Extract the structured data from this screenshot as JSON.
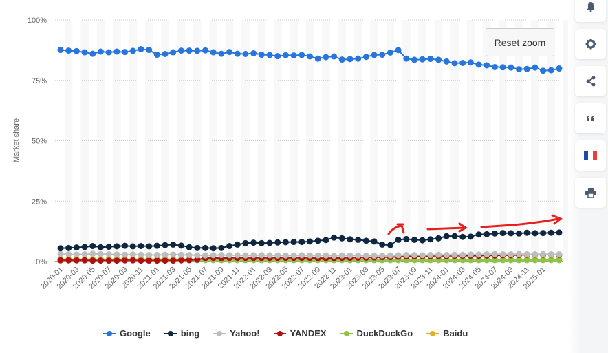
{
  "chart_data": {
    "type": "line",
    "ylabel": "Market share",
    "ylim": [
      0,
      100
    ],
    "yticks": [
      "0%",
      "25%",
      "50%",
      "75%",
      "100%"
    ],
    "x_start": "2020-01",
    "xtick_labels": [
      "2020-01",
      "2020-03",
      "2020-05",
      "2020-07",
      "2020-09",
      "2020-11",
      "2021-01",
      "2021-03",
      "2021-05",
      "2021-07",
      "2021-09",
      "2021-11",
      "2022-01",
      "2022-03",
      "2022-05",
      "2022-07",
      "2022-09",
      "2022-11",
      "2023-01",
      "2023-03",
      "2023-05",
      "2023-07",
      "2023-09",
      "2023-11",
      "2024-01",
      "2024-03",
      "2024-05",
      "2024-07",
      "2024-09",
      "2024-11",
      "2025-01"
    ],
    "grid": true,
    "legend_position": "bottom",
    "series": [
      {
        "name": "Google",
        "color": "#2876dd",
        "values": [
          87.6,
          87.3,
          87.1,
          86.6,
          86.0,
          86.9,
          86.6,
          86.9,
          86.7,
          87.2,
          87.9,
          87.6,
          85.6,
          85.9,
          86.6,
          87.3,
          87.3,
          87.2,
          87.4,
          86.6,
          86.0,
          86.7,
          86.0,
          85.9,
          86.2,
          85.6,
          85.5,
          85.0,
          85.4,
          85.3,
          85.5,
          84.9,
          84.0,
          84.6,
          84.9,
          83.6,
          83.8,
          84.0,
          84.7,
          85.5,
          85.6,
          86.5,
          87.5,
          84.0,
          83.5,
          83.7,
          83.9,
          83.5,
          82.8,
          82.1,
          82.2,
          82.4,
          81.5,
          81.2,
          80.5,
          80.4,
          80.3,
          79.6,
          79.7,
          80.3,
          79.0,
          79.2,
          79.9
        ]
      },
      {
        "name": "bing",
        "color": "#0f2640",
        "values": [
          5.5,
          5.6,
          5.8,
          6.0,
          6.4,
          5.9,
          6.1,
          6.3,
          6.5,
          6.3,
          6.4,
          6.3,
          6.5,
          6.8,
          7.0,
          6.6,
          5.9,
          5.6,
          5.6,
          5.5,
          5.6,
          6.4,
          7.0,
          7.6,
          7.8,
          7.6,
          7.7,
          7.9,
          8.0,
          8.1,
          8.1,
          8.3,
          8.6,
          8.9,
          9.9,
          9.6,
          9.2,
          9.0,
          8.6,
          8.3,
          7.0,
          6.8,
          9.0,
          9.3,
          9.0,
          8.8,
          9.2,
          9.6,
          10.5,
          10.5,
          10.2,
          10.3,
          11.2,
          11.3,
          11.6,
          11.8,
          11.7,
          11.6,
          11.9,
          11.7,
          11.8,
          11.9,
          12.0
        ]
      },
      {
        "name": "Yahoo!",
        "color": "#bdbdbd",
        "values": [
          3.1,
          3.0,
          2.9,
          3.0,
          3.2,
          3.1,
          3.0,
          2.9,
          2.8,
          2.9,
          2.8,
          2.7,
          2.7,
          2.8,
          2.9,
          2.8,
          2.7,
          2.6,
          2.5,
          2.6,
          2.7,
          2.6,
          2.6,
          2.5,
          2.6,
          2.6,
          2.6,
          2.5,
          2.5,
          2.5,
          2.6,
          2.5,
          2.5,
          2.5,
          2.4,
          2.5,
          2.5,
          2.5,
          2.4,
          2.4,
          2.5,
          2.5,
          2.6,
          2.7,
          2.7,
          2.6,
          2.7,
          2.8,
          2.7,
          2.8,
          2.8,
          2.9,
          2.9,
          3.0,
          3.1,
          3.0,
          3.0,
          3.1,
          3.0,
          3.0,
          3.1,
          3.0,
          3.0
        ]
      },
      {
        "name": "YANDEX",
        "color": "#b20e0e",
        "values": [
          0.5,
          0.5,
          0.5,
          0.5,
          0.4,
          0.4,
          0.4,
          0.4,
          0.5,
          0.5,
          0.4,
          0.4,
          0.4,
          0.4,
          0.4,
          0.5,
          0.6,
          0.8,
          1.4,
          1.5,
          1.4,
          1.5,
          1.5,
          1.5,
          1.5,
          1.5,
          1.5,
          1.5,
          1.5,
          1.5,
          1.5,
          1.5,
          1.4,
          1.4,
          1.4,
          1.5,
          1.5,
          1.6,
          1.6,
          1.7,
          1.8,
          1.8,
          2.0,
          2.1,
          2.2,
          2.2,
          2.3,
          2.3,
          2.3,
          2.4,
          2.4,
          2.4,
          2.4,
          2.5,
          2.5,
          2.6,
          2.6,
          2.7,
          2.8,
          2.9,
          2.8,
          2.9,
          2.8
        ]
      },
      {
        "name": "DuckDuckGo",
        "color": "#8cc63f",
        "values": [
          0.6,
          0.6,
          0.6,
          0.6,
          0.6,
          0.6,
          0.6,
          0.6,
          0.6,
          0.6,
          0.6,
          0.6,
          0.6,
          0.6,
          0.6,
          0.6,
          0.6,
          0.6,
          0.6,
          0.6,
          0.6,
          0.6,
          0.6,
          0.6,
          0.6,
          0.6,
          0.6,
          0.6,
          0.6,
          0.6,
          0.6,
          0.6,
          0.6,
          0.6,
          0.6,
          0.6,
          0.6,
          0.6,
          0.6,
          0.6,
          0.6,
          0.6,
          0.6,
          0.6,
          0.6,
          0.6,
          0.6,
          0.6,
          0.6,
          0.6,
          0.6,
          0.6,
          0.6,
          0.6,
          0.6,
          0.6,
          0.6,
          0.6,
          0.6,
          0.6,
          0.6,
          0.6,
          0.6
        ]
      },
      {
        "name": "Baidu",
        "color": "#e8ac22",
        "values": [
          0.9,
          0.9,
          0.9,
          0.9,
          0.9,
          0.9,
          0.9,
          0.9,
          0.9,
          0.9,
          0.9,
          0.9,
          0.9,
          0.9,
          0.9,
          0.9,
          0.9,
          0.9,
          0.9,
          0.9,
          0.9,
          0.9,
          0.9,
          0.9,
          0.8,
          0.8,
          0.8,
          0.8,
          0.8,
          0.8,
          0.8,
          0.8,
          0.8,
          0.8,
          0.8,
          0.8,
          0.8,
          0.8,
          0.8,
          0.8,
          0.8,
          0.8,
          0.8,
          0.8,
          0.8,
          0.8,
          0.8,
          0.8,
          0.8,
          0.8,
          0.8,
          0.8,
          0.8,
          0.8,
          0.8,
          0.8,
          0.8,
          0.8,
          0.8,
          0.8,
          0.8,
          0.8,
          0.8
        ]
      }
    ]
  },
  "toolbar": {
    "reset_zoom": "Reset zoom",
    "buttons": [
      "bell-icon",
      "gear-icon",
      "share-icon",
      "quote-icon",
      "french-flag-icon",
      "print-icon"
    ]
  },
  "annotation_color": "#e8201c"
}
